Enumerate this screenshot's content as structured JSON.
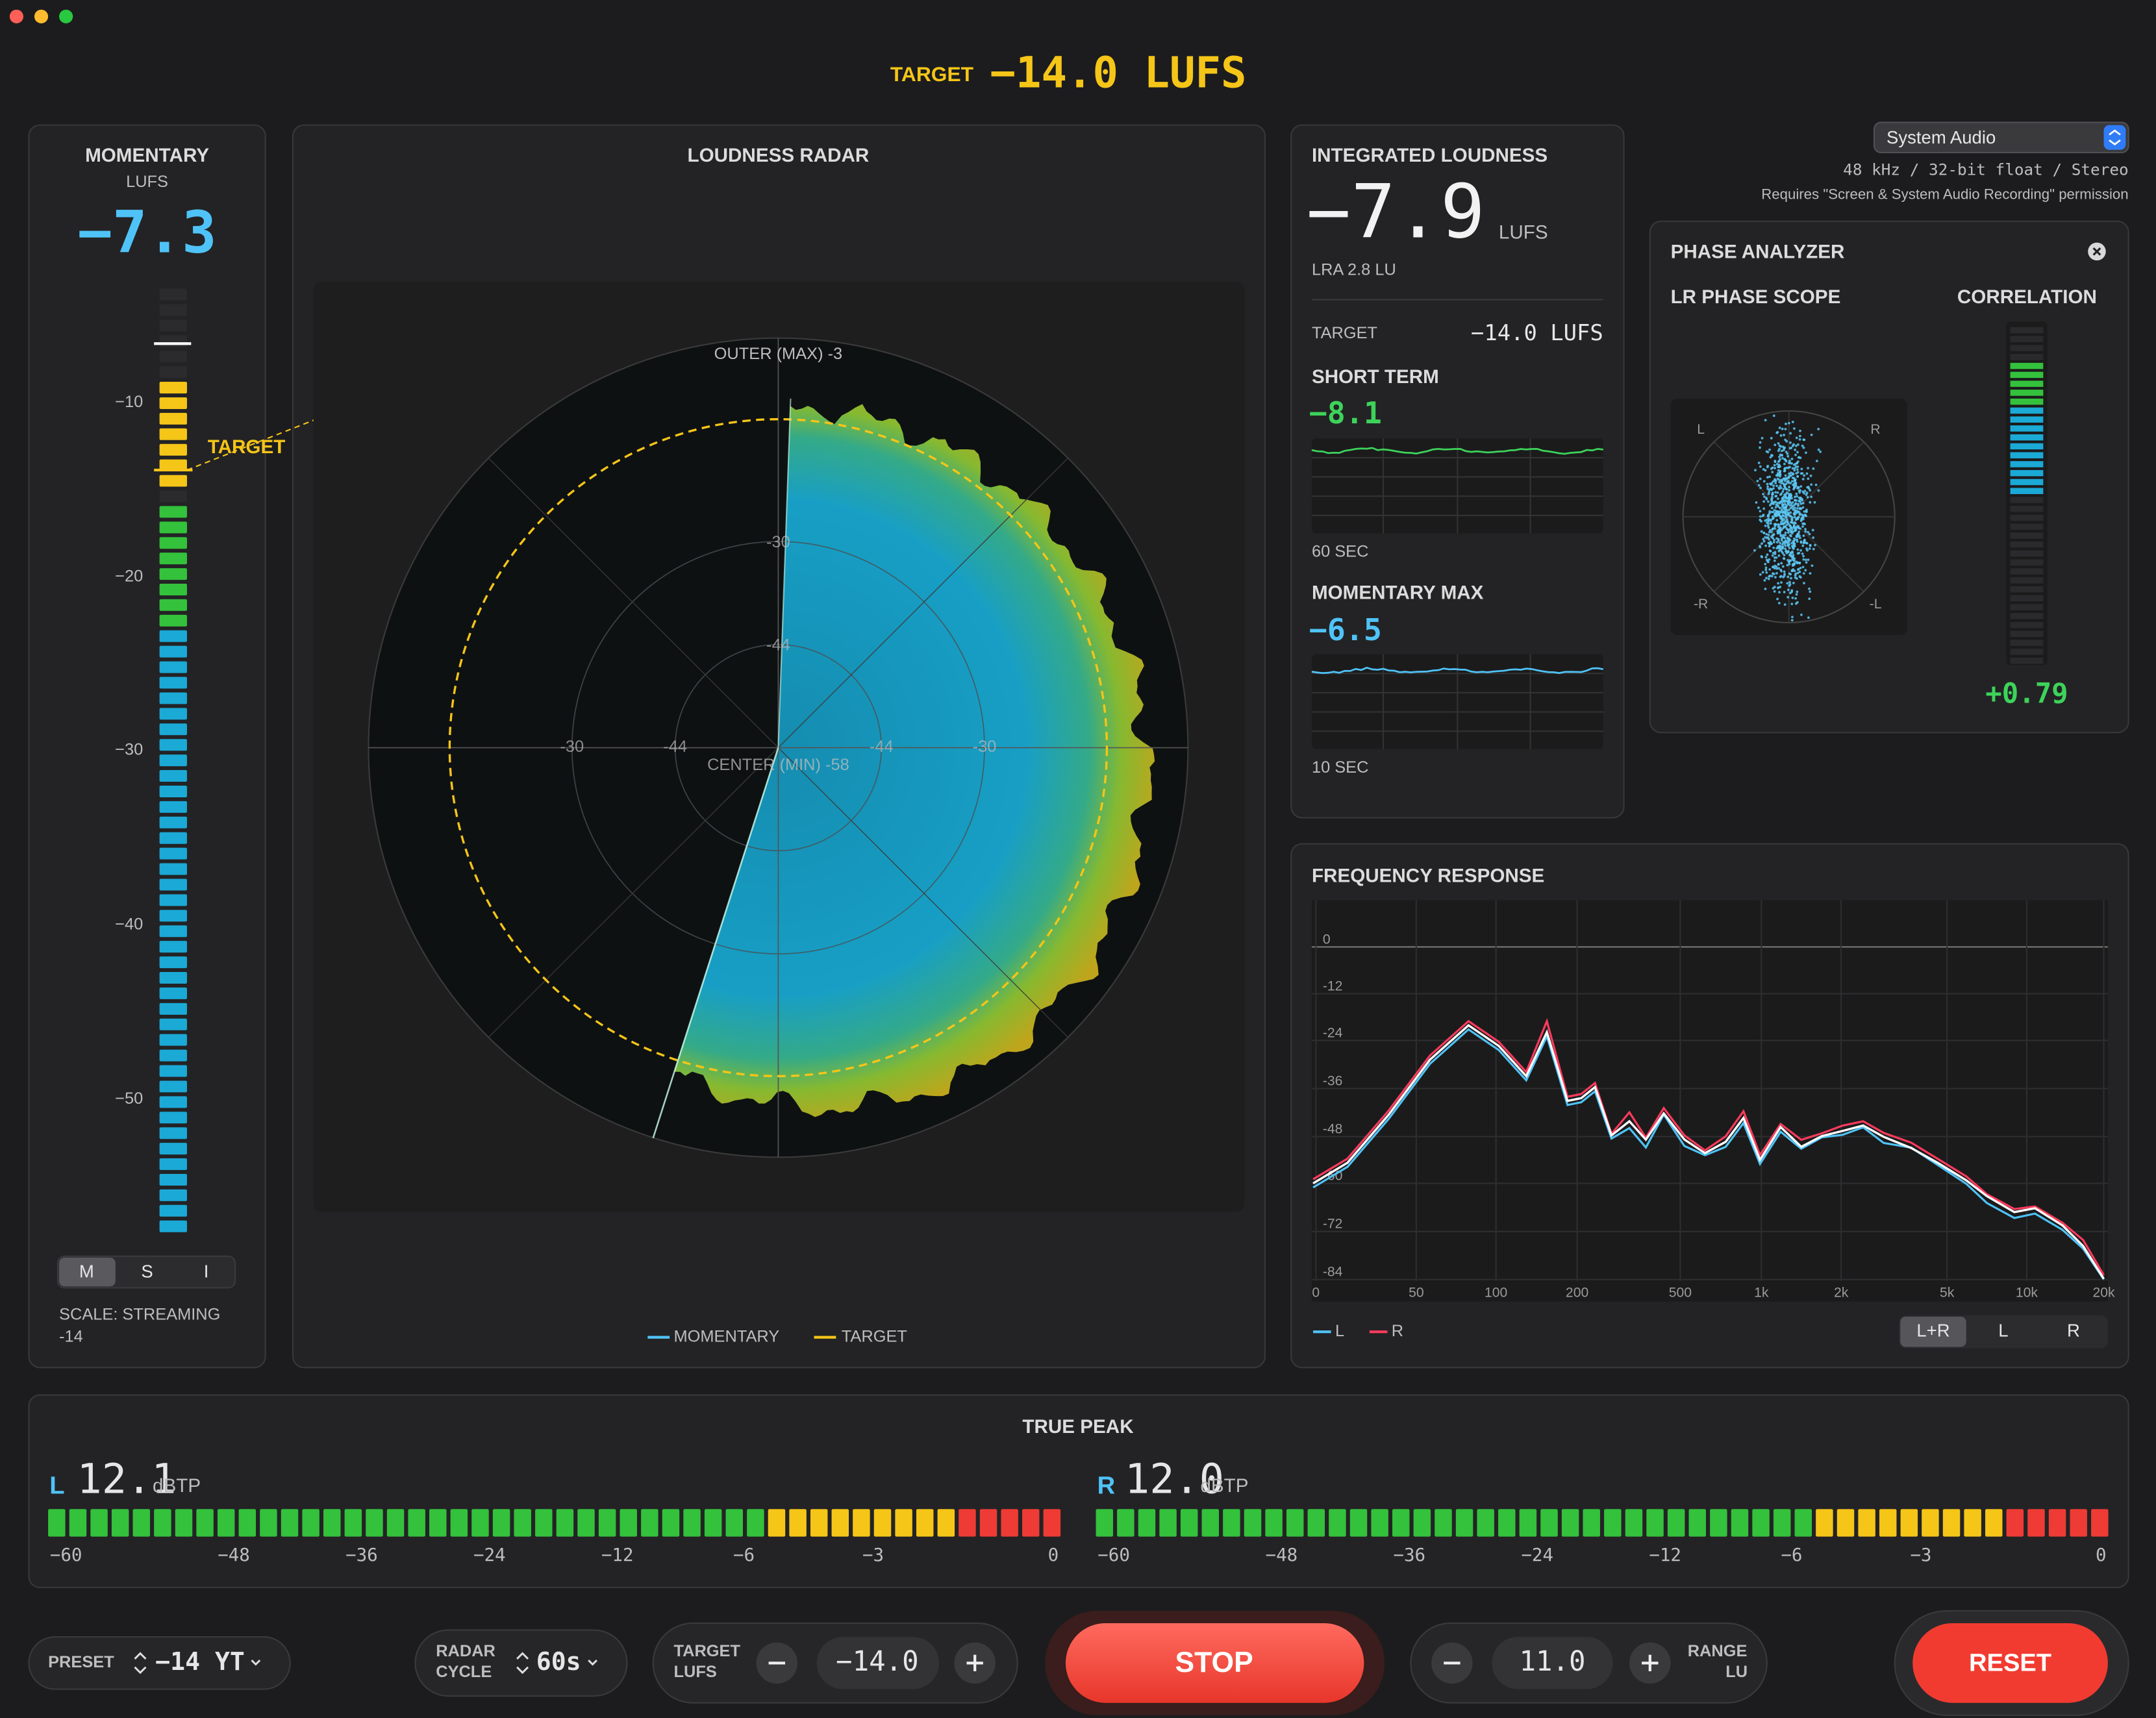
{
  "header": {
    "target_label": "TARGET",
    "target_value": "−14.0 LUFS"
  },
  "momentary": {
    "title": "MOMENTARY",
    "unit": "LUFS",
    "value": "−7.3",
    "scale_labels": [
      "−10",
      "−20",
      "−30",
      "−40",
      "−50"
    ],
    "target_label": "TARGET",
    "modes": [
      "M",
      "S",
      "I"
    ],
    "scale_note": "SCALE: STREAMING",
    "scale_value": "-14"
  },
  "radar": {
    "title": "LOUDNESS RADAR",
    "outer_label": "OUTER (MAX) -3",
    "center_label": "CENTER (MIN) -58",
    "ring_labels": [
      "-30",
      "-44",
      "-30",
      "-44",
      "-44",
      "-30"
    ],
    "legend": [
      "MOMENTARY",
      "TARGET"
    ]
  },
  "integrated": {
    "title": "INTEGRATED LOUDNESS",
    "value": "−7.9",
    "unit": "LUFS",
    "lra": "LRA 2.8 LU",
    "target_label": "TARGET",
    "target_value": "−14.0 LUFS",
    "short_term_title": "SHORT TERM",
    "short_term_value": "−8.1",
    "short_term_window": "60 SEC",
    "momentary_max_title": "MOMENTARY MAX",
    "momentary_max_value": "−6.5",
    "momentary_max_window": "10 SEC"
  },
  "source": {
    "device": "System Audio",
    "format": "48 kHz / 32-bit float / Stereo",
    "note": "Requires \"Screen & System Audio Recording\" permission"
  },
  "phase": {
    "title": "PHASE ANALYZER",
    "scope_title": "LR PHASE SCOPE",
    "correlation_title": "CORRELATION",
    "scope_labels": [
      "L",
      "R",
      "-R",
      "-L"
    ],
    "correlation_value": "+0.79"
  },
  "frequency": {
    "title": "FREQUENCY RESPONSE",
    "y_labels": [
      "0",
      "-12",
      "-24",
      "-36",
      "-48",
      "-60",
      "-72",
      "-84"
    ],
    "x_labels": [
      "0",
      "50",
      "100",
      "200",
      "500",
      "1k",
      "2k",
      "5k",
      "10k",
      "20k"
    ],
    "legend": [
      "L",
      "R"
    ],
    "tabs": [
      "L+R",
      "L",
      "R"
    ]
  },
  "true_peak": {
    "title": "TRUE PEAK",
    "channels": [
      {
        "name": "L",
        "value": "12.1",
        "unit": "dBTP"
      },
      {
        "name": "R",
        "value": "12.0",
        "unit": "dBTP"
      }
    ],
    "scale": [
      "−60",
      "−48",
      "−36",
      "−24",
      "−12",
      "−6",
      "−3",
      "0"
    ]
  },
  "controls": {
    "preset_label": "PRESET",
    "preset_value": "−14 YT",
    "radar_cycle_label": [
      "RADAR",
      "CYCLE"
    ],
    "radar_cycle_value": "60s",
    "target_label": [
      "TARGET",
      "LUFS"
    ],
    "target_value": "−14.0",
    "stop": "STOP",
    "range_value": "11.0",
    "range_label": [
      "RANGE",
      "LU"
    ],
    "reset": "RESET"
  }
}
